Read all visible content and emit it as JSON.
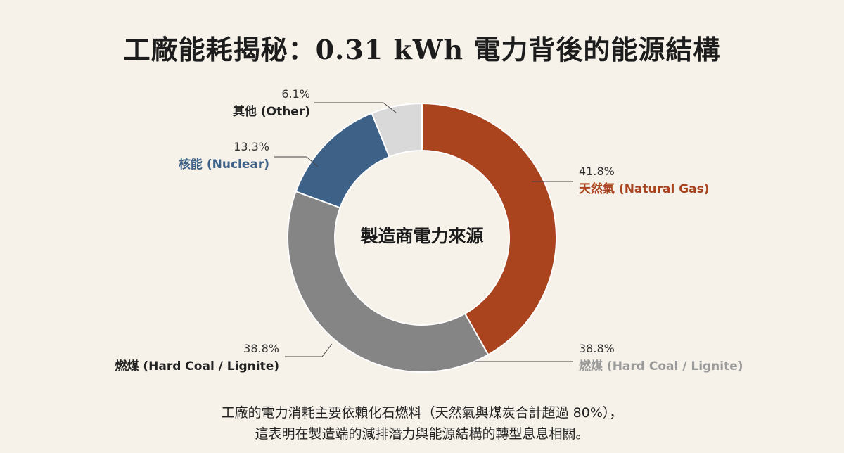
{
  "title": "工廠能耗揭秘：0.31 kWh 電力背後的能源結構",
  "chart_data": {
    "type": "pie",
    "variant": "donut",
    "center_label": "製造商電力來源",
    "slices": [
      {
        "key": "gas",
        "label": "天然氣 (Natural Gas)",
        "percent_label": "41.8%",
        "value": 41.8,
        "color": "#a9441f",
        "label_color": "#a9441f"
      },
      {
        "key": "coal",
        "label": "燃煤 (Hard Coal / Lignite)",
        "percent_label": "38.8%",
        "value": 38.8,
        "color": "#858585",
        "label_color": "#222222"
      },
      {
        "key": "nuclear",
        "label": "核能 (Nuclear)",
        "percent_label": "13.3%",
        "value": 13.3,
        "color": "#3e6188",
        "label_color": "#3e6188"
      },
      {
        "key": "other",
        "label": "其他 (Other)",
        "percent_label": "6.1%",
        "value": 6.1,
        "color": "#d9d9d9",
        "label_color": "#222222"
      }
    ],
    "ghost_label": {
      "label": "燃煤 (Hard Coal / Lignite)",
      "percent_label": "38.8%",
      "label_color": "#9a9a9a"
    }
  },
  "caption": {
    "line1": "工廠的電力消耗主要依賴化石燃料（天然氣與煤炭合計超過 80%），",
    "line2": "這表明在製造端的減排潛力與能源結構的轉型息息相關。"
  }
}
